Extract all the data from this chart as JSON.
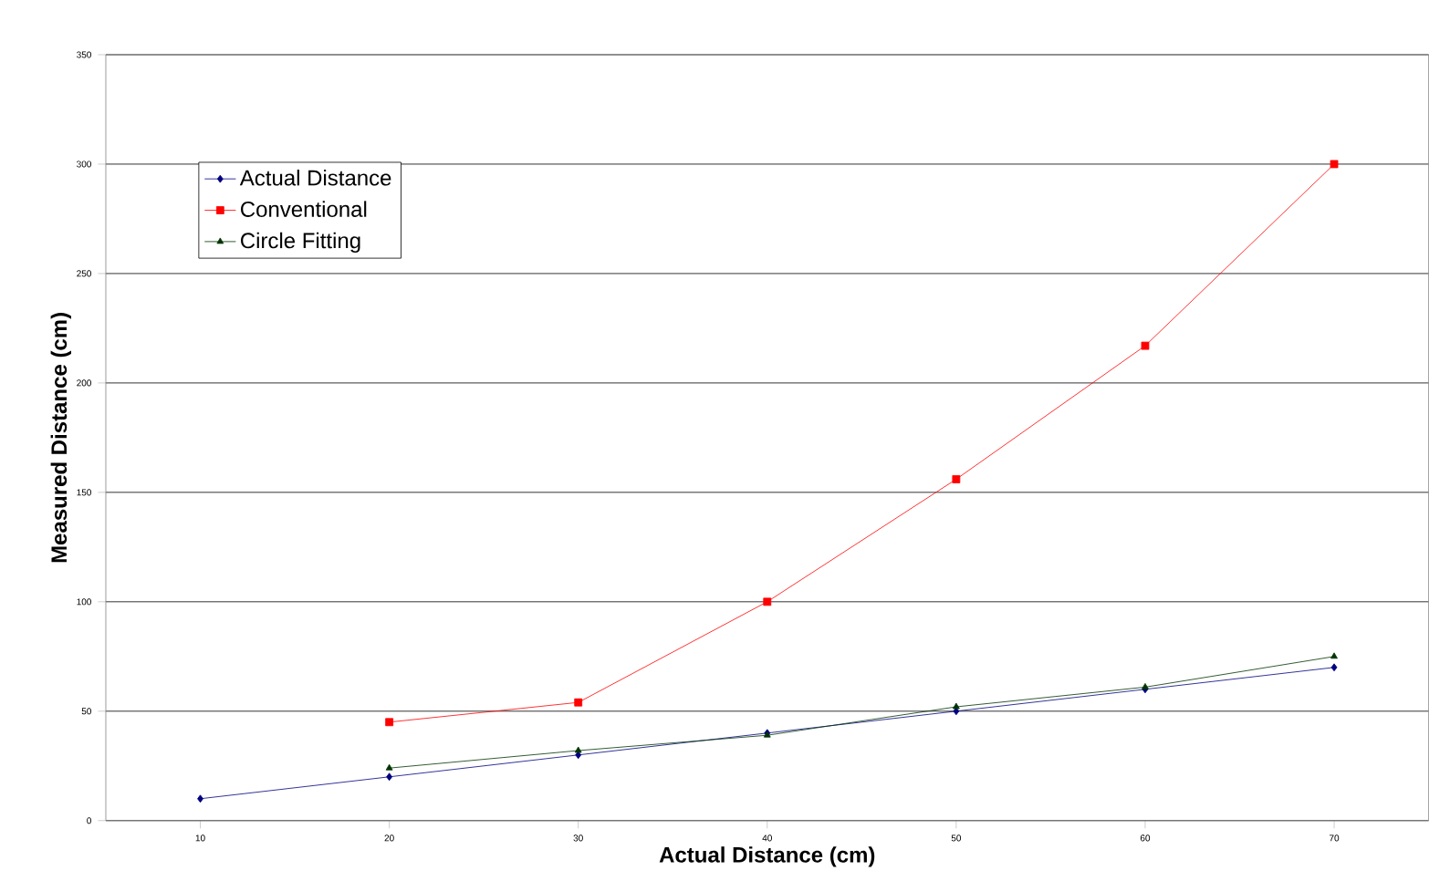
{
  "chart_data": {
    "type": "line",
    "xlabel": "Actual Distance (cm)",
    "ylabel": "Measured Distance (cm)",
    "categories": [
      "10",
      "20",
      "30",
      "40",
      "50",
      "60",
      "70"
    ],
    "series": [
      {
        "name": "Actual Distance",
        "color": "#000080",
        "marker": "diamond",
        "values": [
          10,
          20,
          30,
          40,
          50,
          60,
          70
        ]
      },
      {
        "name": "Conventional",
        "color": "#ff0000",
        "marker": "square",
        "values": [
          null,
          45,
          54,
          100,
          156,
          217,
          300
        ]
      },
      {
        "name": "Circle Fitting",
        "color": "#003300",
        "marker": "triangle",
        "values": [
          null,
          24,
          32,
          39,
          52,
          61,
          75
        ]
      }
    ],
    "ylim": [
      0,
      350
    ],
    "yticks": [
      0,
      50,
      100,
      150,
      200,
      250,
      300,
      350
    ],
    "grid": "y",
    "legend": "top left",
    "line_style": "solid"
  }
}
